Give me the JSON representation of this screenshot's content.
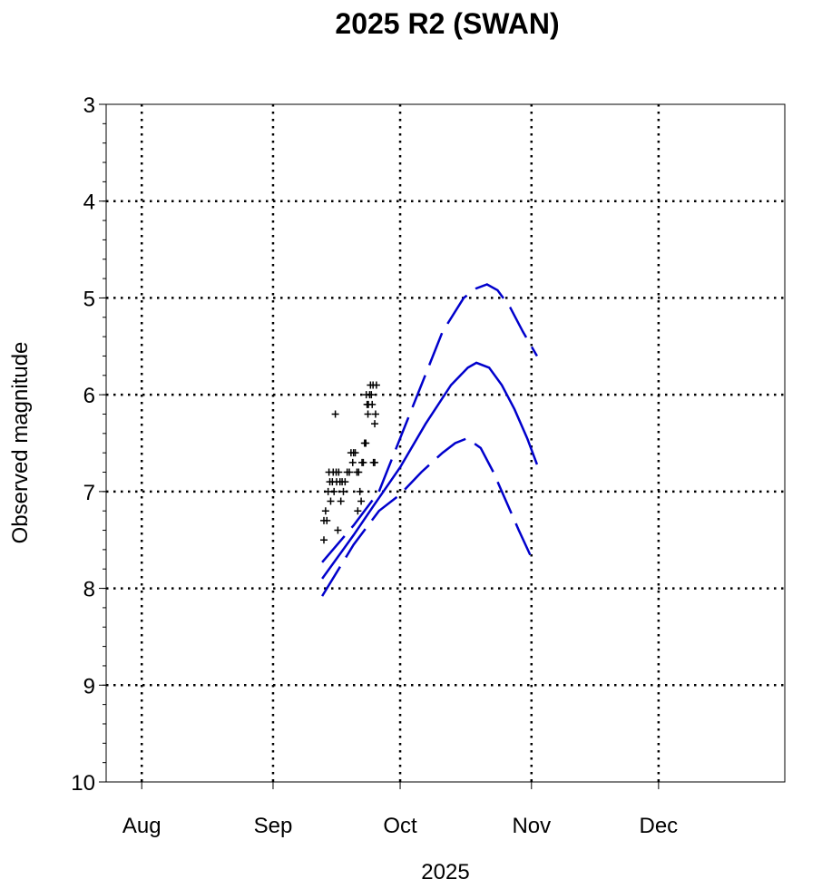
{
  "chart_data": {
    "type": "line",
    "title": "2025 R2 (SWAN)",
    "xlabel": "2025",
    "ylabel": "Observed magnitude",
    "x_units": "days since 2025-08-01",
    "xlim": [
      -8.4,
      151.8
    ],
    "ylim": [
      3,
      10
    ],
    "y_inverted": true,
    "grid": true,
    "x_ticks": [
      {
        "label": "Aug",
        "value": 0
      },
      {
        "label": "Sep",
        "value": 31
      },
      {
        "label": "Oct",
        "value": 61
      },
      {
        "label": "Nov",
        "value": 92
      },
      {
        "label": "Dec",
        "value": 122
      }
    ],
    "y_ticks": [
      {
        "label": "3",
        "value": 3
      },
      {
        "label": "4",
        "value": 4
      },
      {
        "label": "5",
        "value": 5
      },
      {
        "label": "6",
        "value": 6
      },
      {
        "label": "7",
        "value": 7
      },
      {
        "label": "8",
        "value": 8
      },
      {
        "label": "9",
        "value": 9
      },
      {
        "label": "10",
        "value": 10
      }
    ],
    "observations": [
      [
        43.0,
        7.5
      ],
      [
        43.0,
        7.3
      ],
      [
        43.4,
        7.2
      ],
      [
        43.7,
        7.3
      ],
      [
        44.0,
        7.0
      ],
      [
        44.2,
        6.8
      ],
      [
        44.4,
        6.9
      ],
      [
        44.6,
        7.1
      ],
      [
        45.0,
        6.9
      ],
      [
        45.2,
        6.8
      ],
      [
        45.4,
        7.0
      ],
      [
        45.7,
        6.2
      ],
      [
        45.9,
        6.8
      ],
      [
        46.0,
        6.9
      ],
      [
        46.3,
        7.4
      ],
      [
        46.5,
        6.8
      ],
      [
        46.8,
        6.9
      ],
      [
        47.0,
        7.1
      ],
      [
        47.3,
        6.9
      ],
      [
        47.6,
        7.0
      ],
      [
        48.0,
        6.9
      ],
      [
        48.5,
        6.8
      ],
      [
        49.0,
        6.8
      ],
      [
        49.4,
        6.6
      ],
      [
        49.8,
        6.7
      ],
      [
        50.0,
        6.6
      ],
      [
        50.4,
        6.6
      ],
      [
        50.8,
        6.8
      ],
      [
        51.0,
        7.2
      ],
      [
        51.2,
        6.8
      ],
      [
        51.5,
        7.0
      ],
      [
        51.8,
        7.1
      ],
      [
        52.0,
        6.7
      ],
      [
        52.3,
        6.7
      ],
      [
        52.6,
        6.5
      ],
      [
        52.9,
        6.5
      ],
      [
        53.0,
        6.0
      ],
      [
        53.2,
        6.1
      ],
      [
        53.4,
        6.2
      ],
      [
        53.5,
        6.1
      ],
      [
        53.8,
        6.0
      ],
      [
        54.0,
        5.9
      ],
      [
        54.2,
        6.0
      ],
      [
        54.4,
        6.1
      ],
      [
        54.6,
        5.9
      ],
      [
        54.7,
        6.7
      ],
      [
        55.0,
        6.3
      ],
      [
        55.0,
        6.7
      ],
      [
        55.2,
        6.2
      ],
      [
        55.4,
        5.9
      ]
    ],
    "series": [
      {
        "name": "fit",
        "style": "solid",
        "color": "#0000cc",
        "points": [
          [
            42.6,
            7.9
          ],
          [
            50,
            7.45
          ],
          [
            55,
            7.13
          ],
          [
            61,
            6.75
          ],
          [
            67,
            6.3
          ],
          [
            73,
            5.9
          ],
          [
            77,
            5.72
          ],
          [
            79,
            5.67
          ],
          [
            82,
            5.72
          ],
          [
            85,
            5.9
          ],
          [
            88,
            6.15
          ],
          [
            91,
            6.45
          ],
          [
            93.3,
            6.72
          ]
        ]
      },
      {
        "name": "upper bound",
        "style": "dashed",
        "color": "#0000cc",
        "points": [
          [
            42.6,
            7.73
          ],
          [
            50,
            7.35
          ],
          [
            56,
            7.0
          ],
          [
            61,
            6.45
          ],
          [
            66,
            5.9
          ],
          [
            71,
            5.35
          ],
          [
            76,
            5.0
          ],
          [
            79,
            4.9
          ],
          [
            81.5,
            4.86
          ],
          [
            84,
            4.92
          ],
          [
            87,
            5.1
          ],
          [
            90,
            5.35
          ],
          [
            93.3,
            5.6
          ]
        ]
      },
      {
        "name": "lower bound",
        "style": "dashed",
        "color": "#0000cc",
        "points": [
          [
            42.6,
            8.08
          ],
          [
            50,
            7.55
          ],
          [
            56,
            7.2
          ],
          [
            61,
            7.03
          ],
          [
            66,
            6.8
          ],
          [
            71,
            6.6
          ],
          [
            74,
            6.5
          ],
          [
            76.8,
            6.45
          ],
          [
            80,
            6.55
          ],
          [
            83,
            6.8
          ],
          [
            86,
            7.1
          ],
          [
            89,
            7.4
          ],
          [
            92.7,
            7.75
          ]
        ]
      }
    ]
  }
}
